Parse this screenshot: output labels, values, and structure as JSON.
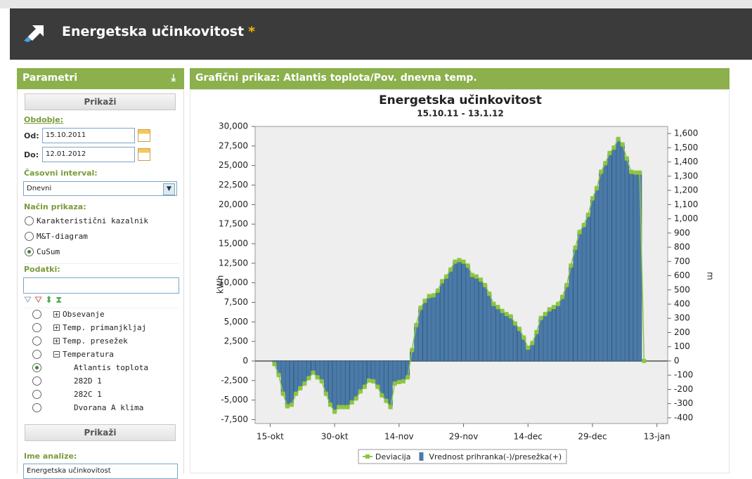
{
  "app": {
    "title": "Energetska učinkovitost",
    "modified_marker": "*"
  },
  "params": {
    "header": "Parametri",
    "show_button": "Prikaži",
    "period_label": "Obdobje:",
    "from_label": "Od:",
    "from_value": "15.10.2011",
    "to_label": "Do:",
    "to_value": "12.01.2012",
    "interval_label": "Časovni interval:",
    "interval_value": "Dnevni",
    "mode_label": "Način prikaza:",
    "modes": [
      "Karakteristični kazalnik",
      "M&T-diagram",
      "CuSum"
    ],
    "data_label": "Podatki:",
    "tree": [
      "Obsevanje",
      "Temp. primanjkljaj",
      "Temp. presežek",
      "Temperatura"
    ],
    "tree_children": [
      "Atlantis toplota",
      "282D 1",
      "282C 1",
      "Dvorana A klima"
    ],
    "show_button_2": "Prikaži",
    "analysis_name_label": "Ime analize:",
    "analysis_name_value": "Energetska učinkovitost"
  },
  "panel": {
    "header": "Grafični prikaz: Atlantis toplota/Pov. dnevna temp."
  },
  "chart_data": {
    "type": "combo",
    "title": "Energetska učinkovitost",
    "subtitle": "15.10.11 - 13.1.12",
    "y_label": "kWh",
    "y2_label": "m",
    "categories": [
      null,
      null,
      null,
      "15-okt",
      null,
      null,
      null,
      null,
      null,
      null,
      null,
      null,
      null,
      null,
      null,
      null,
      null,
      null,
      "30-okt",
      null,
      null,
      null,
      null,
      null,
      null,
      null,
      null,
      null,
      null,
      null,
      null,
      null,
      null,
      "14-nov",
      null,
      null,
      null,
      null,
      null,
      null,
      null,
      null,
      null,
      null,
      null,
      null,
      null,
      null,
      "29-nov",
      null,
      null,
      null,
      null,
      null,
      null,
      null,
      null,
      null,
      null,
      null,
      null,
      null,
      null,
      "14-dec",
      null,
      null,
      null,
      null,
      null,
      null,
      null,
      null,
      null,
      null,
      null,
      null,
      null,
      null,
      "29-dec",
      null,
      null,
      null,
      null,
      null,
      null,
      null,
      null,
      null,
      null,
      null,
      null,
      null,
      null,
      "13-jan",
      null,
      null
    ],
    "ylim": [
      -8000,
      30000
    ],
    "yticks": [
      {
        "value": -7500,
        "label": "-7,500"
      },
      {
        "value": -5000,
        "label": "-5,000"
      },
      {
        "value": -2500,
        "label": "-2,500"
      },
      0,
      {
        "value": 2500,
        "label": "2,500"
      },
      {
        "value": 5000,
        "label": "5,000"
      },
      {
        "value": 7500,
        "label": "7,500"
      },
      {
        "value": 10000,
        "label": "10,000"
      },
      {
        "value": 12500,
        "label": "12,500"
      },
      {
        "value": 15000,
        "label": "15,000"
      },
      {
        "value": 17500,
        "label": "17,500"
      },
      {
        "value": 20000,
        "label": "20,000"
      },
      {
        "value": 22500,
        "label": "22,500"
      },
      {
        "value": 25000,
        "label": "25,000"
      },
      {
        "value": 27500,
        "label": "27,500"
      },
      {
        "value": 30000,
        "label": "30,000"
      }
    ],
    "y2lim": [
      -440,
      1650
    ],
    "y2ticks": [
      -400,
      -300,
      -200,
      -100,
      0,
      100,
      200,
      300,
      400,
      500,
      600,
      700,
      800,
      900,
      {
        "value": 1000,
        "label": "1,000"
      },
      {
        "value": 1100,
        "label": "1,100"
      },
      {
        "value": 1200,
        "label": "1,200"
      },
      {
        "value": 1300,
        "label": "1,300"
      },
      {
        "value": 1400,
        "label": "1,400"
      },
      {
        "value": 1500,
        "label": "1,500"
      },
      {
        "value": 1600,
        "label": "1,600"
      }
    ],
    "grid": false,
    "series": [
      {
        "name": "Deviacija",
        "type": "line",
        "color": "#8dc63f",
        "values": [
          null,
          null,
          null,
          null,
          -400,
          -1800,
          -4200,
          -5800,
          -5600,
          -4200,
          -3500,
          -2900,
          -2200,
          -1500,
          -2100,
          -2600,
          -4200,
          -5600,
          -6500,
          -5900,
          -5900,
          -5900,
          -5300,
          -4800,
          -3900,
          -3300,
          -2500,
          -2600,
          -3300,
          -4400,
          -5100,
          -5900,
          -2900,
          -2700,
          -2600,
          -2100,
          1400,
          4600,
          6800,
          7700,
          8300,
          8400,
          9000,
          10200,
          10800,
          11700,
          12700,
          12900,
          12700,
          12200,
          11000,
          10800,
          10400,
          9700,
          8600,
          7300,
          6900,
          6400,
          6000,
          5700,
          4800,
          4100,
          3000,
          1700,
          2300,
          3700,
          5500,
          6000,
          6600,
          6900,
          7300,
          8200,
          9700,
          12200,
          14500,
          16500,
          17400,
          18700,
          20800,
          22100,
          24200,
          25300,
          26600,
          27300,
          28400,
          27700,
          25900,
          24200,
          24100,
          24100,
          0,
          null,
          null,
          null,
          null,
          null
        ]
      },
      {
        "name": "Vrednost prihranka(-)/presežka(+)",
        "type": "bar",
        "color": "#4a7aa8",
        "values": [
          null,
          null,
          null,
          null,
          -400,
          -1800,
          -4200,
          -5800,
          -5600,
          -4200,
          -3500,
          -2900,
          -2200,
          -1500,
          -2100,
          -2600,
          -4200,
          -5600,
          -6500,
          -5900,
          -5900,
          -5900,
          -5300,
          -4800,
          -3900,
          -3300,
          -2500,
          -2600,
          -3300,
          -4400,
          -5100,
          -5900,
          -2900,
          -2700,
          -2600,
          -2100,
          1400,
          4600,
          6800,
          7700,
          8300,
          8400,
          9000,
          10200,
          10800,
          11700,
          12700,
          12900,
          12700,
          12200,
          11000,
          10800,
          10400,
          9700,
          8600,
          7300,
          6900,
          6400,
          6000,
          5700,
          4800,
          4100,
          3000,
          1700,
          2300,
          3700,
          5500,
          6000,
          6600,
          6900,
          7300,
          8200,
          9700,
          12200,
          14500,
          16500,
          17400,
          18700,
          20800,
          22100,
          24200,
          25300,
          26600,
          27300,
          28400,
          27700,
          25900,
          24200,
          24100,
          24100,
          null,
          null,
          null,
          null,
          null,
          null
        ]
      }
    ]
  }
}
